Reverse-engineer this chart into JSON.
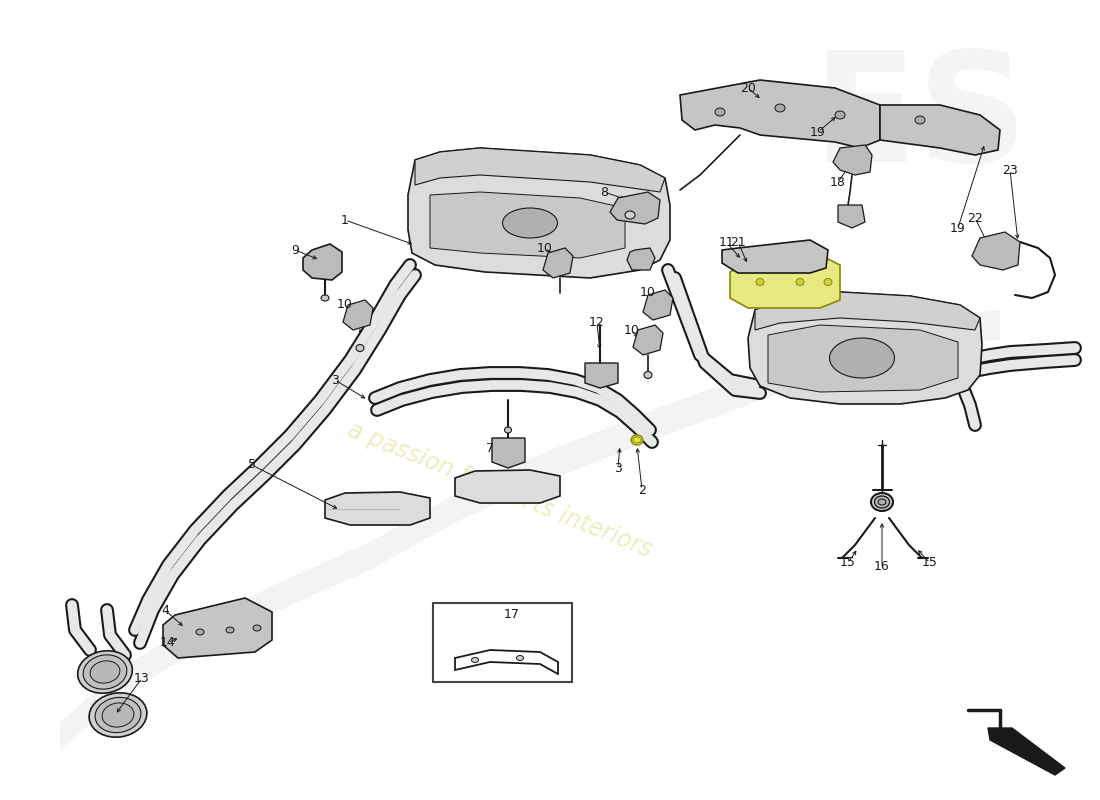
{
  "bg": "#ffffff",
  "lc": "#1a1a1a",
  "lw": 1.2,
  "pipe_fill": "#e8e8e8",
  "pipe_lw": 1.0,
  "muffler_fill": "#dcdcdc",
  "bracket_fill": "#cccccc",
  "yellow_fill": "#e8e880",
  "watermark_color": "#d8d870",
  "watermark_alpha": 0.45,
  "logo_color": "#e0e0e0",
  "logo_alpha": 0.35,
  "swirl_color": "#e8e8e8",
  "swirl_alpha": 0.5
}
